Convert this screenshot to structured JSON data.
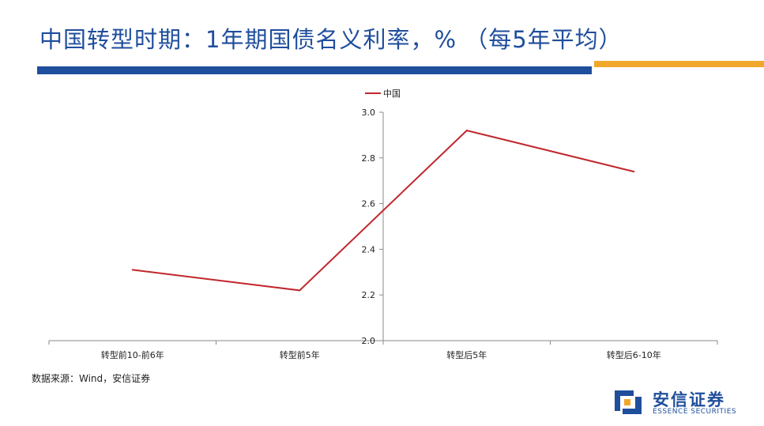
{
  "slide": {
    "title": "中国转型时期：1年期国债名义利率，% （每5年平均）",
    "source": "数据来源：Wind，安信证券"
  },
  "logo": {
    "name": "安信证券",
    "name_en": "ESSENCE SECURITIES"
  },
  "colors": {
    "title": "#1f4e9c",
    "accent_blue": "#1f4e9c",
    "accent_gold": "#f0a82b",
    "series": "#c0272d"
  },
  "chart_data": {
    "type": "line",
    "categories": [
      "转型前10-前6年",
      "转型前5年",
      "转型后5年",
      "转型后6-10年"
    ],
    "series": [
      {
        "name": "中国",
        "values": [
          2.31,
          2.22,
          2.92,
          2.74
        ],
        "color": "#c0272d"
      }
    ],
    "ylim": [
      2.0,
      3.0
    ],
    "yticks": [
      "2.0",
      "2.2",
      "2.4",
      "2.6",
      "2.8",
      "3.0"
    ],
    "grid": false,
    "legend": "top-center"
  }
}
